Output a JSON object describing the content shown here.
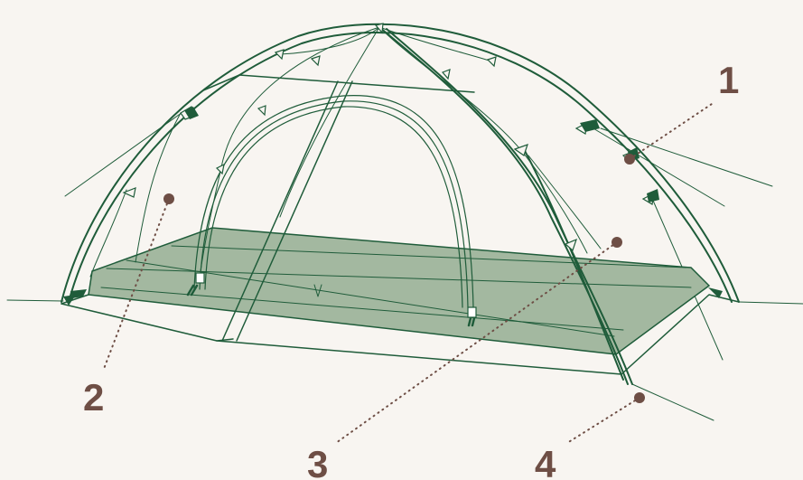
{
  "colors": {
    "background": "#f8f5f1",
    "tent_line": "#1f5c3a",
    "floor_fill": "#a3b8a0",
    "callout": "#6e4e45"
  },
  "callouts": [
    {
      "id": "1",
      "label": "1"
    },
    {
      "id": "2",
      "label": "2"
    },
    {
      "id": "3",
      "label": "3"
    },
    {
      "id": "4",
      "label": "4"
    }
  ]
}
